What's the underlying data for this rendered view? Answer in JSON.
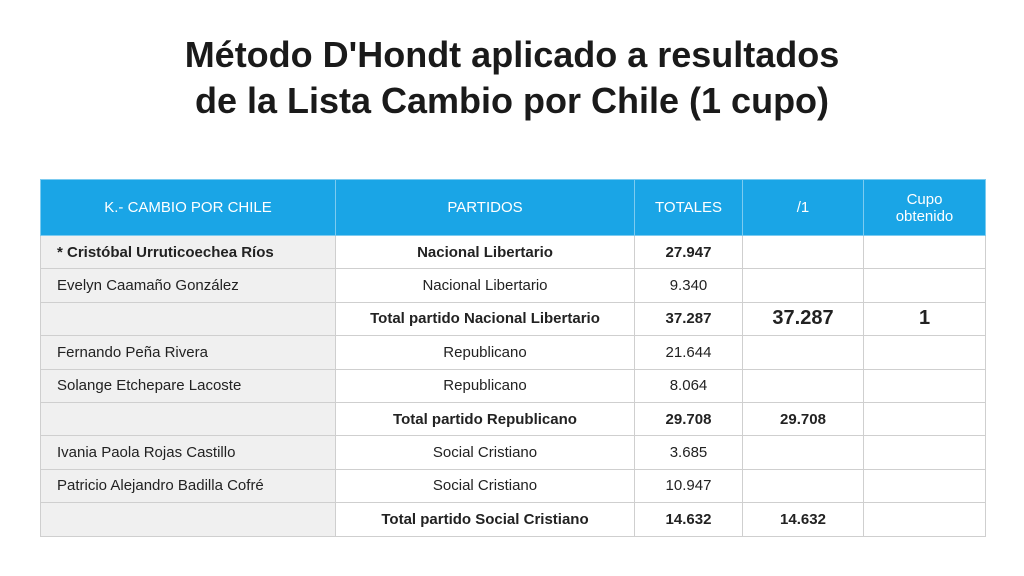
{
  "title": {
    "line1": "Método D'Hondt aplicado a resultados",
    "line2": "de la Lista Cambio por Chile (1 cupo)"
  },
  "table": {
    "headers": [
      "K.- CAMBIO POR CHILE",
      "PARTIDOS",
      "TOTALES",
      "/1",
      "Cupo obtenido"
    ],
    "rows": [
      {
        "candidate": "* Cristóbal Urruticoechea Ríos",
        "party": "Nacional Libertario",
        "total": "27.947",
        "div1": "",
        "cupo": ""
      },
      {
        "candidate": "Evelyn Caamaño González",
        "party": "Nacional Libertario",
        "total": "9.340",
        "div1": "",
        "cupo": ""
      },
      {
        "candidate": "",
        "party": "Total partido Nacional Libertario",
        "total": "37.287",
        "div1": "37.287",
        "cupo": "1"
      },
      {
        "candidate": "Fernando Peña Rivera",
        "party": "Republicano",
        "total": "21.644",
        "div1": "",
        "cupo": ""
      },
      {
        "candidate": "Solange Etchepare Lacoste",
        "party": "Republicano",
        "total": "8.064",
        "div1": "",
        "cupo": ""
      },
      {
        "candidate": "",
        "party": "Total partido Republicano",
        "total": "29.708",
        "div1": "29.708",
        "cupo": ""
      },
      {
        "candidate": "Ivania Paola Rojas Castillo",
        "party": "Social Cristiano",
        "total": "3.685",
        "div1": "",
        "cupo": ""
      },
      {
        "candidate": "Patricio Alejandro Badilla Cofré",
        "party": "Social Cristiano",
        "total": "10.947",
        "div1": "",
        "cupo": ""
      },
      {
        "candidate": "",
        "party": "Total partido Social Cristiano",
        "total": "14.632",
        "div1": "14.632",
        "cupo": ""
      }
    ]
  },
  "colors": {
    "header_bg": "#1aa5e6",
    "candidate_bg": "#f0f0f0"
  }
}
